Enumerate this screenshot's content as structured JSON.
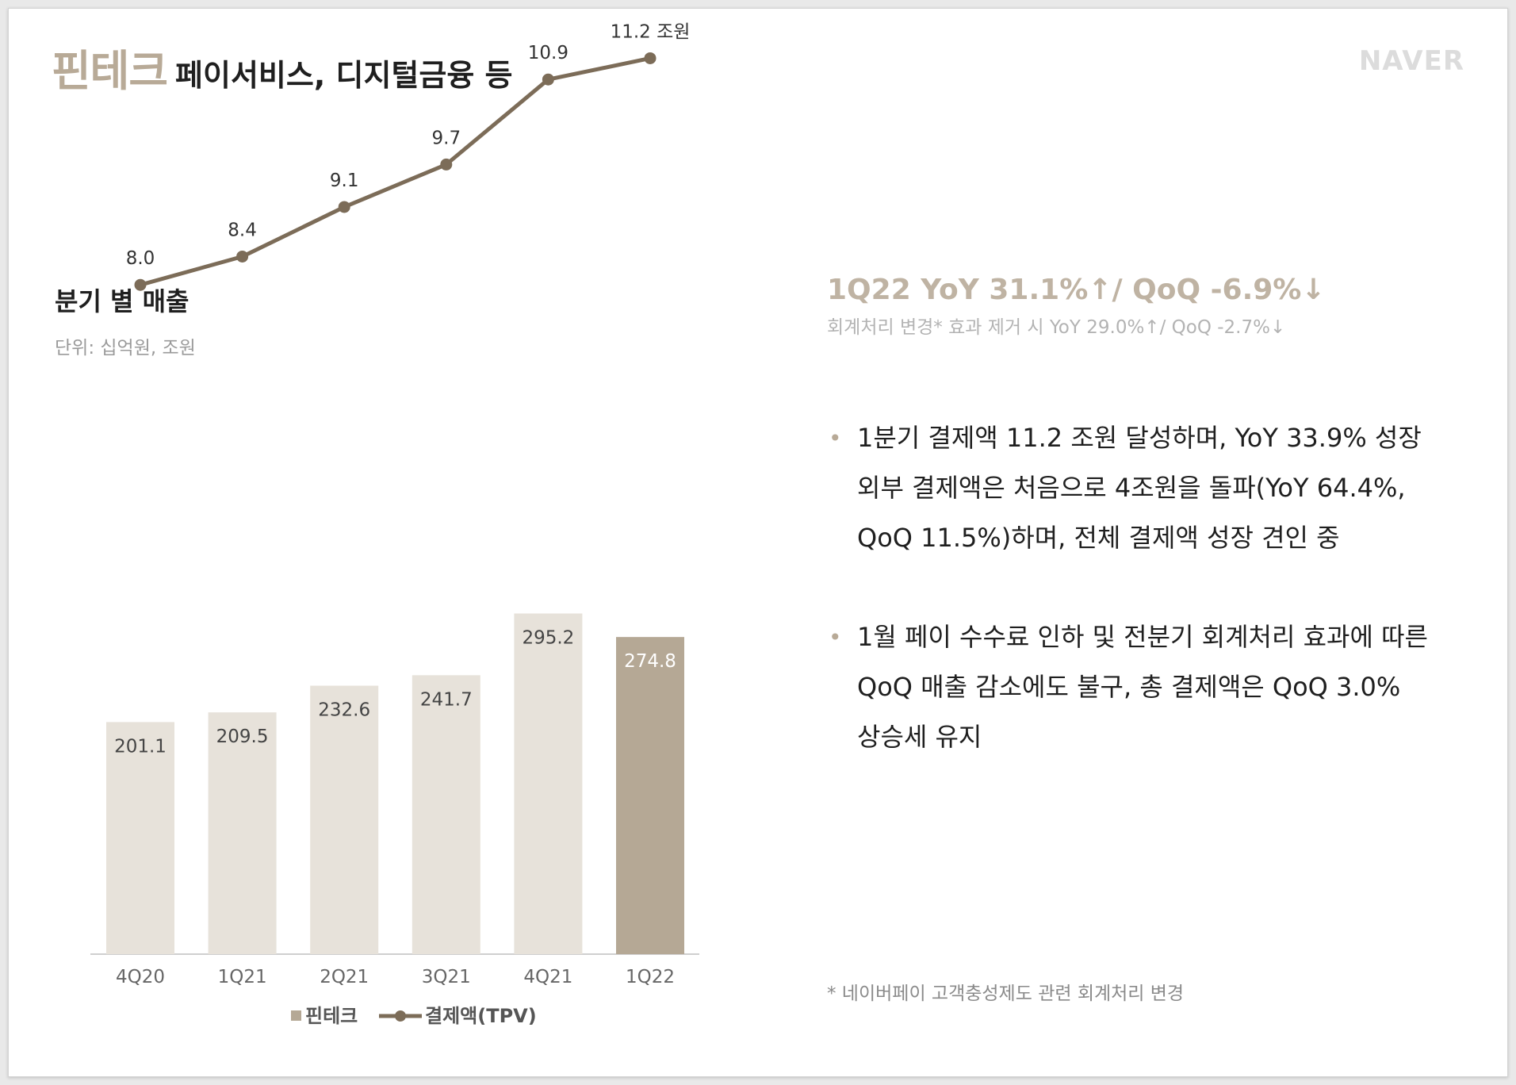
{
  "header": {
    "main": "핀테크",
    "sub": "페이서비스, 디지털금융 등"
  },
  "logo": "NAVER",
  "chart": {
    "title": "분기 별 매출",
    "unit": "단위: 십억원, 조원"
  },
  "chart_data": {
    "type": "bar",
    "categories": [
      "4Q20",
      "1Q21",
      "2Q21",
      "3Q21",
      "4Q21",
      "1Q22"
    ],
    "series": [
      {
        "name": "핀테크",
        "type": "bar",
        "values": [
          201.1,
          209.5,
          232.6,
          241.7,
          295.2,
          274.8
        ]
      },
      {
        "name": "결제액(TPV)",
        "type": "line",
        "values": [
          8.0,
          8.4,
          9.1,
          9.7,
          10.9,
          11.2
        ]
      }
    ],
    "bar_labels": [
      "201.1",
      "209.5",
      "232.6",
      "241.7",
      "295.2",
      "274.8"
    ],
    "line_labels": [
      "8.0",
      "8.4",
      "9.1",
      "9.7",
      "10.9",
      "11.2 조원"
    ],
    "legend_position": "bottom",
    "grid": false,
    "colors": {
      "bar": "#e7e2da",
      "bar_highlight": "#b5a895",
      "line": "#7c6c58",
      "axis": "#cfcfcf"
    }
  },
  "kpi": {
    "main": "1Q22 YoY 31.1%↑/ QoQ -6.9%↓",
    "sub": "회계처리 변경* 효과 제거 시 YoY 29.0%↑/ QoQ -2.7%↓"
  },
  "bullets": [
    {
      "lines": [
        "1분기 결제액 11.2 조원 달성하며, YoY 33.9% 성장",
        "외부 결제액은 처음으로 4조원을 돌파(YoY 64.4%,",
        "QoQ 11.5%)하며, 전체 결제액 성장 견인 중"
      ]
    },
    {
      "lines": [
        "1월 페이 수수료 인하 및 전분기 회계처리 효과에 따른",
        "QoQ 매출 감소에도 불구, 총 결제액은 QoQ 3.0%",
        "상승세 유지"
      ]
    }
  ],
  "footnote": "* 네이버페이 고객충성제도 관련 회계처리 변경"
}
